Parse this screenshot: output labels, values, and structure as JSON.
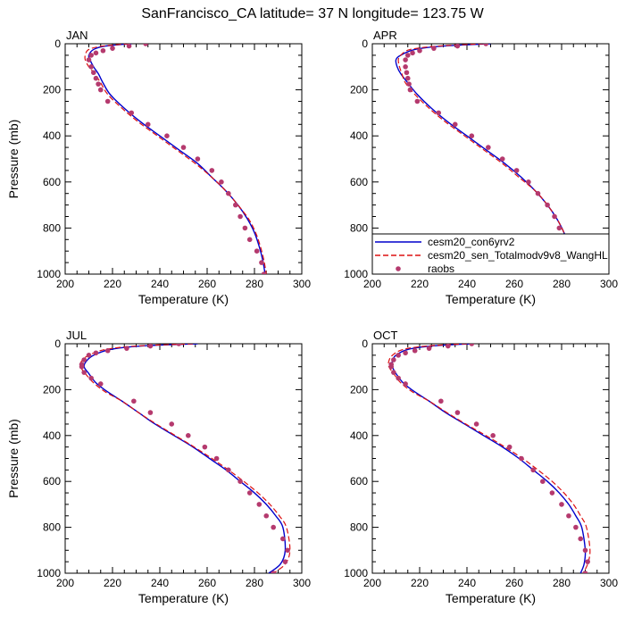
{
  "figure": {
    "title": "SanFrancisco_CA  latitude= 37 N longitude= 123.75 W"
  },
  "legend": {
    "placement": "bottom-right of APR panel",
    "entries": [
      {
        "name": "cesm20_con6yrv2",
        "style": "solid line",
        "color": "#0000cc"
      },
      {
        "name": "cesm20_sen_Totalmodv9v8_WangHL",
        "style": "dashed line",
        "color": "#dd1111"
      },
      {
        "name": "raobs",
        "style": "markers",
        "color": "#b53a6e"
      }
    ]
  },
  "chart_data": [
    {
      "type": "line",
      "panel": "JAN",
      "xlabel": "Temperature (K)",
      "ylabel": "Pressure (mb)",
      "xlim": [
        200,
        300
      ],
      "ylim": [
        1000,
        0
      ],
      "y_reversed": true,
      "x_ticks": [
        "200",
        "220",
        "240",
        "260",
        "280",
        "300"
      ],
      "y_ticks": [
        "0",
        "200",
        "400",
        "600",
        "800",
        "1000"
      ],
      "grid": false,
      "series": [
        {
          "name": "cesm20_con6yrv2",
          "kind": "line",
          "x": [
            228,
            217,
            212,
            210,
            210.5,
            212,
            214,
            216,
            219,
            225,
            232,
            240,
            248,
            256,
            262,
            268,
            273,
            277,
            280,
            282,
            283.5,
            284.5
          ],
          "y": [
            0,
            10,
            25,
            50,
            70,
            100,
            130,
            170,
            220,
            280,
            340,
            400,
            460,
            520,
            580,
            640,
            700,
            760,
            820,
            880,
            940,
            1000
          ]
        },
        {
          "name": "cesm20_sen_Totalmodv9v8_WangHL",
          "kind": "line",
          "x": [
            227,
            216,
            210,
            208.5,
            208.5,
            210,
            212.5,
            215,
            218,
            224,
            231,
            239,
            247,
            255,
            262,
            268,
            273,
            277.5,
            280.5,
            282.5,
            284,
            285
          ],
          "y": [
            0,
            10,
            25,
            50,
            70,
            100,
            130,
            170,
            220,
            280,
            340,
            400,
            460,
            520,
            580,
            640,
            700,
            760,
            820,
            880,
            940,
            1000
          ]
        },
        {
          "name": "raobs",
          "kind": "scatter",
          "x": [
            234,
            227,
            220,
            216,
            213,
            211,
            210,
            211,
            212,
            213,
            214,
            215,
            218,
            228,
            235,
            243,
            250,
            256,
            262,
            266,
            269,
            272,
            274,
            276,
            278,
            281,
            283,
            284
          ],
          "y": [
            0,
            10,
            20,
            30,
            40,
            50,
            70,
            100,
            125,
            150,
            175,
            200,
            250,
            300,
            350,
            400,
            450,
            500,
            550,
            600,
            650,
            700,
            750,
            800,
            850,
            900,
            950,
            1000
          ]
        }
      ]
    },
    {
      "type": "line",
      "panel": "APR",
      "xlabel": "Temperature (K)",
      "ylabel": "",
      "xlim": [
        200,
        300
      ],
      "ylim": [
        1000,
        0
      ],
      "y_reversed": true,
      "x_ticks": [
        "200",
        "220",
        "240",
        "260",
        "280",
        "300"
      ],
      "y_ticks": [
        "0",
        "200",
        "400",
        "600",
        "800",
        "1000"
      ],
      "grid": false,
      "series": [
        {
          "name": "cesm20_con6yrv2",
          "kind": "line",
          "x": [
            250,
            230,
            218,
            212,
            210,
            210.5,
            212,
            215,
            219,
            225,
            232,
            240,
            248,
            256,
            263,
            269,
            274,
            278,
            281,
            283,
            284.5,
            285.5
          ],
          "y": [
            0,
            10,
            25,
            50,
            70,
            100,
            130,
            170,
            220,
            280,
            340,
            400,
            460,
            520,
            580,
            640,
            700,
            760,
            820,
            880,
            940,
            1000
          ]
        },
        {
          "name": "cesm20_sen_Totalmodv9v8_WangHL",
          "kind": "line",
          "x": [
            247,
            228,
            216,
            212,
            211,
            211.5,
            212.5,
            214,
            218,
            224,
            231,
            239,
            247,
            255,
            262,
            269,
            274,
            278,
            281,
            283,
            284.5,
            285.5
          ],
          "y": [
            0,
            10,
            25,
            50,
            70,
            100,
            130,
            170,
            220,
            280,
            340,
            400,
            460,
            520,
            580,
            640,
            700,
            760,
            820,
            880,
            940,
            1000
          ]
        },
        {
          "name": "raobs",
          "kind": "scatter",
          "x": [
            248,
            236,
            226,
            220,
            217,
            215,
            214,
            214,
            214.5,
            215,
            215.5,
            216,
            219,
            228,
            235,
            242,
            249,
            255,
            261,
            266,
            270,
            274,
            277,
            279,
            281,
            283,
            284,
            285
          ],
          "y": [
            0,
            10,
            20,
            30,
            40,
            50,
            70,
            100,
            125,
            150,
            175,
            200,
            250,
            300,
            350,
            400,
            450,
            500,
            550,
            600,
            650,
            700,
            750,
            800,
            850,
            900,
            950,
            1000
          ]
        }
      ]
    },
    {
      "type": "line",
      "panel": "JUL",
      "xlabel": "Temperature (K)",
      "ylabel": "Pressure (mb)",
      "xlim": [
        200,
        300
      ],
      "ylim": [
        1000,
        0
      ],
      "y_reversed": true,
      "x_ticks": [
        "200",
        "220",
        "240",
        "260",
        "280",
        "300"
      ],
      "y_ticks": [
        "0",
        "200",
        "400",
        "600",
        "800",
        "1000"
      ],
      "grid": false,
      "series": [
        {
          "name": "cesm20_con6yrv2",
          "kind": "line",
          "x": [
            256,
            232,
            219,
            212,
            209,
            208,
            210,
            213,
            218,
            224,
            231,
            238,
            246,
            254,
            261,
            268,
            274,
            280,
            285,
            289,
            292,
            293,
            291,
            286
          ],
          "y": [
            0,
            10,
            25,
            50,
            75,
            100,
            130,
            170,
            210,
            250,
            300,
            350,
            400,
            450,
            500,
            550,
            600,
            650,
            700,
            750,
            800,
            900,
            960,
            1000
          ]
        },
        {
          "name": "cesm20_sen_Totalmodv9v8_WangHL",
          "kind": "line",
          "x": [
            254,
            230,
            217,
            210,
            207,
            206.5,
            208.5,
            212,
            217,
            224,
            231,
            238.5,
            246.5,
            254.5,
            262,
            269,
            275.5,
            281.5,
            286.5,
            290.5,
            293.5,
            295,
            293,
            288
          ],
          "y": [
            0,
            10,
            25,
            50,
            75,
            100,
            130,
            170,
            210,
            250,
            300,
            350,
            400,
            450,
            500,
            550,
            600,
            650,
            700,
            750,
            800,
            900,
            960,
            1000
          ]
        },
        {
          "name": "raobs",
          "kind": "scatter",
          "x": [
            248,
            236,
            226,
            218,
            213,
            210,
            208,
            207,
            207,
            208,
            211,
            215,
            229,
            236,
            245,
            252,
            259,
            264,
            269,
            274,
            278,
            282,
            285,
            288,
            292,
            294,
            293,
            288
          ],
          "y": [
            0,
            10,
            20,
            30,
            40,
            50,
            70,
            90,
            100,
            125,
            150,
            175,
            250,
            300,
            350,
            400,
            450,
            500,
            550,
            600,
            650,
            700,
            750,
            800,
            850,
            900,
            950,
            1000
          ]
        }
      ]
    },
    {
      "type": "line",
      "panel": "OCT",
      "xlabel": "Temperature (K)",
      "ylabel": "",
      "xlim": [
        200,
        300
      ],
      "ylim": [
        1000,
        0
      ],
      "y_reversed": true,
      "x_ticks": [
        "200",
        "220",
        "240",
        "260",
        "280",
        "300"
      ],
      "y_ticks": [
        "0",
        "200",
        "400",
        "600",
        "800",
        "1000"
      ],
      "grid": false,
      "series": [
        {
          "name": "cesm20_con6yrv2",
          "kind": "line",
          "x": [
            242,
            225,
            215,
            210,
            208.5,
            208.5,
            210,
            213,
            218,
            224,
            231,
            239,
            247,
            255,
            262,
            268,
            274,
            279,
            283,
            286,
            288.5,
            290,
            289.5,
            288
          ],
          "y": [
            0,
            10,
            25,
            50,
            75,
            100,
            130,
            170,
            210,
            250,
            300,
            350,
            400,
            450,
            500,
            550,
            600,
            650,
            700,
            750,
            800,
            900,
            960,
            1000
          ]
        },
        {
          "name": "cesm20_sen_Totalmodv9v8_WangHL",
          "kind": "line",
          "x": [
            240,
            223,
            213,
            208.5,
            207,
            207,
            209,
            212,
            217,
            224,
            231.5,
            239.5,
            248,
            256,
            263.5,
            270,
            276,
            281,
            285,
            288,
            290.5,
            292,
            291,
            289
          ],
          "y": [
            0,
            10,
            25,
            50,
            75,
            100,
            130,
            170,
            210,
            250,
            300,
            350,
            400,
            450,
            500,
            550,
            600,
            650,
            700,
            750,
            800,
            900,
            960,
            1000
          ]
        },
        {
          "name": "raobs",
          "kind": "scatter",
          "x": [
            242,
            232,
            224,
            218,
            214,
            211,
            209,
            208,
            208,
            209,
            211,
            214,
            229,
            236,
            244,
            251,
            258,
            263,
            268,
            272,
            276,
            280,
            283,
            286,
            288,
            290,
            291,
            290
          ],
          "y": [
            0,
            10,
            20,
            30,
            40,
            50,
            70,
            90,
            100,
            125,
            150,
            175,
            250,
            300,
            350,
            400,
            450,
            500,
            550,
            600,
            650,
            700,
            750,
            800,
            850,
            900,
            950,
            1000
          ]
        }
      ]
    }
  ]
}
